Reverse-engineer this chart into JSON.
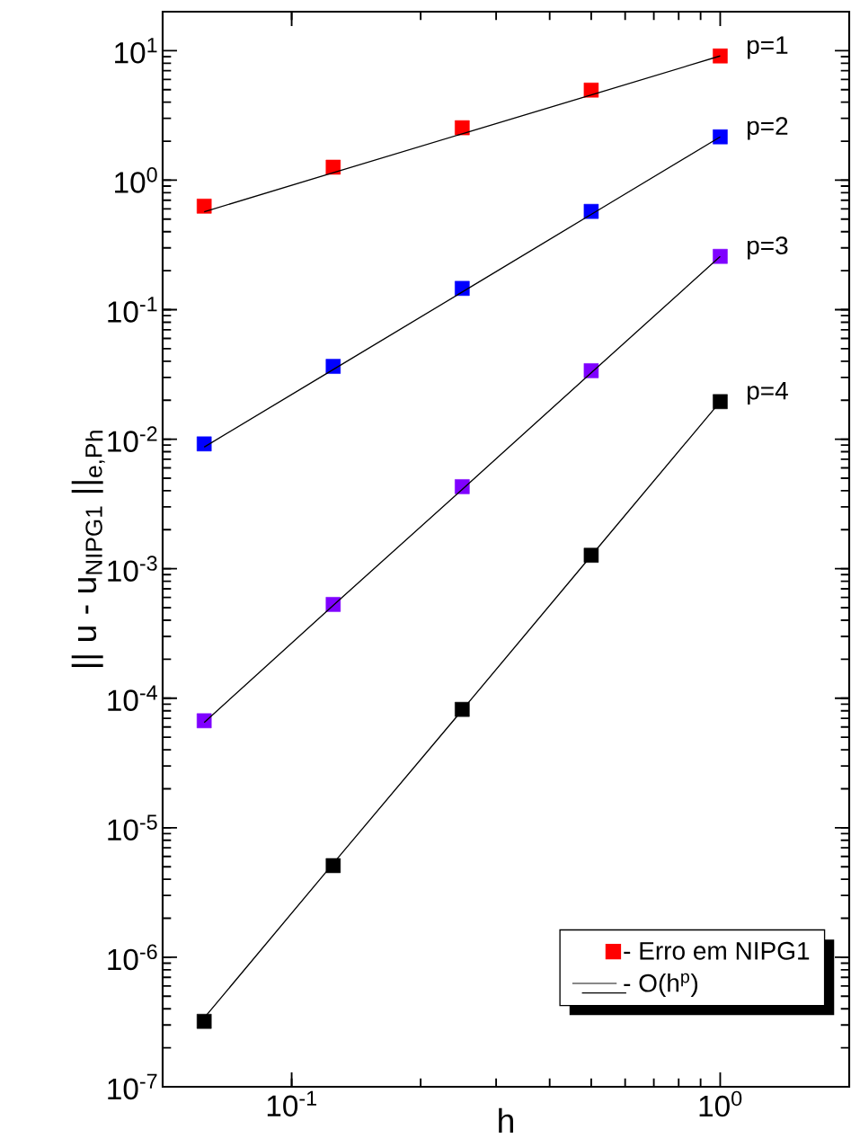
{
  "chart_data": {
    "type": "scatter",
    "xlabel": "h",
    "ylabel": "|| u - u$_{NIPG1}$ ||$_{e,P}$$_{h}$",
    "log": "xy",
    "xlim": [
      0.05,
      2
    ],
    "ylim": [
      1e-07,
      20
    ],
    "xticks": [
      {
        "value": 0.1,
        "label": "10$^{-1}$"
      },
      {
        "value": 1,
        "label": "10$^{0}$"
      }
    ],
    "yticks": [
      {
        "value": 1e-07,
        "label": "10$^{-7}$"
      },
      {
        "value": 1e-06,
        "label": "10$^{-6}$"
      },
      {
        "value": 1e-05,
        "label": "10$^{-5}$"
      },
      {
        "value": 0.0001,
        "label": "10$^{-4}$"
      },
      {
        "value": 0.001,
        "label": "10$^{-3}$"
      },
      {
        "value": 0.01,
        "label": "10$^{-2}$"
      },
      {
        "value": 0.1,
        "label": "10$^{-1}$"
      },
      {
        "value": 1,
        "label": "10$^{0}$"
      },
      {
        "value": 10,
        "label": "10$^{1}$"
      }
    ],
    "marker": "square",
    "legend": "bottom right",
    "grid": false,
    "x": [
      0.0625,
      0.125,
      0.25,
      0.5,
      1
    ],
    "series": [
      {
        "name": "- Erro em NIPG1",
        "color": "#ff0000",
        "values": [
          0.63,
          1.26,
          2.54,
          4.96,
          9.1
        ]
      },
      {
        "color": "#0000ff",
        "values": [
          0.0092,
          0.0365,
          0.146,
          0.574,
          2.16
        ]
      },
      {
        "color": "#7f00ff",
        "values": [
          6.7e-05,
          0.00053,
          0.0043,
          0.0338,
          0.258
        ]
      },
      {
        "color": "#000000",
        "values": [
          3.2e-07,
          5.1e-06,
          8.2e-05,
          0.00127,
          0.0195
        ]
      },
      {
        "name": "- O(h$^{p}$)",
        "type": "line",
        "color": "#000000",
        "marker": "none",
        "values": [
          0.57,
          1.14,
          2.28,
          4.55,
          9.1
        ]
      },
      {
        "type": "line",
        "color": "#000000",
        "marker": "none",
        "values": [
          0.0087,
          0.0345,
          0.137,
          0.544,
          2.16
        ]
      },
      {
        "type": "line",
        "color": "#000000",
        "marker": "none",
        "values": [
          6.5e-05,
          0.00052,
          0.0041,
          0.0325,
          0.258
        ]
      },
      {
        "type": "line",
        "color": "#000000",
        "marker": "none",
        "values": [
          3.4e-07,
          5.3e-06,
          8.1e-05,
          0.00126,
          0.0195
        ]
      }
    ],
    "annotations": [
      "p=1",
      "p=2",
      "p=3",
      "p=4"
    ]
  }
}
